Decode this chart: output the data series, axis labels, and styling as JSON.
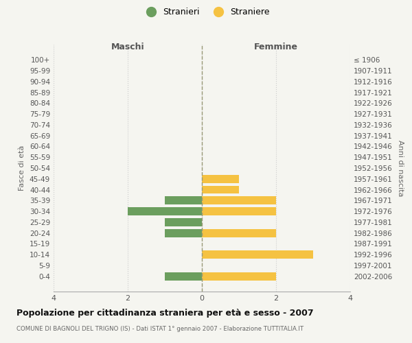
{
  "age_groups": [
    "100+",
    "95-99",
    "90-94",
    "85-89",
    "80-84",
    "75-79",
    "70-74",
    "65-69",
    "60-64",
    "55-59",
    "50-54",
    "45-49",
    "40-44",
    "35-39",
    "30-34",
    "25-29",
    "20-24",
    "15-19",
    "10-14",
    "5-9",
    "0-4"
  ],
  "birth_years": [
    "≤ 1906",
    "1907-1911",
    "1912-1916",
    "1917-1921",
    "1922-1926",
    "1927-1931",
    "1932-1936",
    "1937-1941",
    "1942-1946",
    "1947-1951",
    "1952-1956",
    "1957-1961",
    "1962-1966",
    "1967-1971",
    "1972-1976",
    "1977-1981",
    "1982-1986",
    "1987-1991",
    "1992-1996",
    "1997-2001",
    "2002-2006"
  ],
  "males": [
    0,
    0,
    0,
    0,
    0,
    0,
    0,
    0,
    0,
    0,
    0,
    0,
    0,
    1,
    2,
    1,
    1,
    0,
    0,
    0,
    1
  ],
  "females": [
    0,
    0,
    0,
    0,
    0,
    0,
    0,
    0,
    0,
    0,
    0,
    1,
    1,
    2,
    2,
    0,
    2,
    0,
    3,
    0,
    2
  ],
  "male_color": "#6b9e5e",
  "female_color": "#f5c242",
  "title": "Popolazione per cittadinanza straniera per età e sesso - 2007",
  "subtitle": "COMUNE DI BAGNOLI DEL TRIGNO (IS) - Dati ISTAT 1° gennaio 2007 - Elaborazione TUTTITALIA.IT",
  "xlabel_left": "Maschi",
  "xlabel_right": "Femmine",
  "ylabel_left": "Fasce di età",
  "ylabel_right": "Anni di nascita",
  "legend_males": "Stranieri",
  "legend_females": "Straniere",
  "xlim": 4,
  "background_color": "#f5f5f0",
  "grid_color": "#cccccc",
  "axis_center_color": "#999977"
}
